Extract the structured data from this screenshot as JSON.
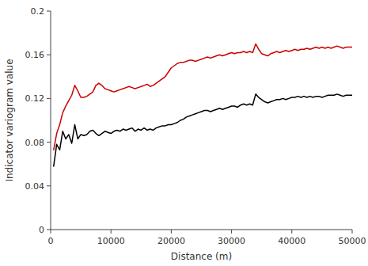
{
  "chart_data": {
    "type": "line",
    "xlabel": "Distance (m)",
    "ylabel": "Indicator variogram value",
    "xlim": [
      0,
      50000
    ],
    "ylim": [
      0,
      0.2
    ],
    "xticks": [
      0,
      10000,
      20000,
      30000,
      40000,
      50000
    ],
    "yticks": [
      0,
      0.04,
      0.08,
      0.12,
      0.16,
      0.2
    ],
    "grid": false,
    "x": [
      500,
      1000,
      1500,
      2000,
      2500,
      3000,
      3500,
      4000,
      4500,
      5000,
      5500,
      6000,
      6500,
      7000,
      7500,
      8000,
      8500,
      9000,
      9500,
      10000,
      10500,
      11000,
      11500,
      12000,
      12500,
      13000,
      13500,
      14000,
      14500,
      15000,
      15500,
      16000,
      16500,
      17000,
      17500,
      18000,
      18500,
      19000,
      19500,
      20000,
      20500,
      21000,
      21500,
      22000,
      22500,
      23000,
      23500,
      24000,
      24500,
      25000,
      25500,
      26000,
      26500,
      27000,
      27500,
      28000,
      28500,
      29000,
      29500,
      30000,
      30500,
      31000,
      31500,
      32000,
      32500,
      33000,
      33500,
      34000,
      34500,
      35000,
      35500,
      36000,
      36500,
      37000,
      37500,
      38000,
      38500,
      39000,
      39500,
      40000,
      40500,
      41000,
      41500,
      42000,
      42500,
      43000,
      43500,
      44000,
      44500,
      45000,
      45500,
      46000,
      46500,
      47000,
      47500,
      48000,
      48500,
      49000,
      49500,
      50000
    ],
    "series": [
      {
        "color": "#000000",
        "values": [
          0.058,
          0.078,
          0.073,
          0.09,
          0.083,
          0.087,
          0.079,
          0.096,
          0.083,
          0.087,
          0.086,
          0.087,
          0.09,
          0.091,
          0.088,
          0.086,
          0.088,
          0.09,
          0.089,
          0.088,
          0.09,
          0.091,
          0.09,
          0.092,
          0.091,
          0.092,
          0.093,
          0.09,
          0.092,
          0.091,
          0.093,
          0.091,
          0.092,
          0.091,
          0.093,
          0.094,
          0.095,
          0.095,
          0.096,
          0.096,
          0.097,
          0.098,
          0.1,
          0.101,
          0.103,
          0.104,
          0.105,
          0.106,
          0.107,
          0.108,
          0.109,
          0.109,
          0.108,
          0.109,
          0.11,
          0.111,
          0.11,
          0.111,
          0.112,
          0.113,
          0.113,
          0.112,
          0.114,
          0.115,
          0.114,
          0.115,
          0.114,
          0.124,
          0.121,
          0.119,
          0.117,
          0.116,
          0.117,
          0.118,
          0.119,
          0.119,
          0.12,
          0.119,
          0.12,
          0.121,
          0.121,
          0.122,
          0.121,
          0.122,
          0.121,
          0.122,
          0.121,
          0.122,
          0.122,
          0.121,
          0.122,
          0.123,
          0.123,
          0.123,
          0.124,
          0.123,
          0.122,
          0.123,
          0.123,
          0.123
        ]
      },
      {
        "color": "#cc0000",
        "values": [
          0.073,
          0.088,
          0.096,
          0.107,
          0.113,
          0.118,
          0.123,
          0.132,
          0.127,
          0.121,
          0.121,
          0.122,
          0.124,
          0.126,
          0.132,
          0.134,
          0.132,
          0.129,
          0.128,
          0.127,
          0.126,
          0.127,
          0.128,
          0.129,
          0.13,
          0.131,
          0.13,
          0.129,
          0.13,
          0.131,
          0.132,
          0.133,
          0.131,
          0.132,
          0.134,
          0.136,
          0.138,
          0.14,
          0.144,
          0.148,
          0.15,
          0.152,
          0.153,
          0.153,
          0.154,
          0.155,
          0.155,
          0.154,
          0.155,
          0.156,
          0.157,
          0.158,
          0.157,
          0.158,
          0.159,
          0.16,
          0.159,
          0.16,
          0.161,
          0.162,
          0.161,
          0.162,
          0.162,
          0.163,
          0.162,
          0.163,
          0.162,
          0.17,
          0.165,
          0.161,
          0.16,
          0.159,
          0.161,
          0.162,
          0.163,
          0.162,
          0.163,
          0.164,
          0.163,
          0.164,
          0.165,
          0.164,
          0.165,
          0.165,
          0.166,
          0.165,
          0.166,
          0.167,
          0.166,
          0.167,
          0.166,
          0.167,
          0.166,
          0.167,
          0.168,
          0.167,
          0.166,
          0.167,
          0.167,
          0.167
        ]
      }
    ]
  }
}
